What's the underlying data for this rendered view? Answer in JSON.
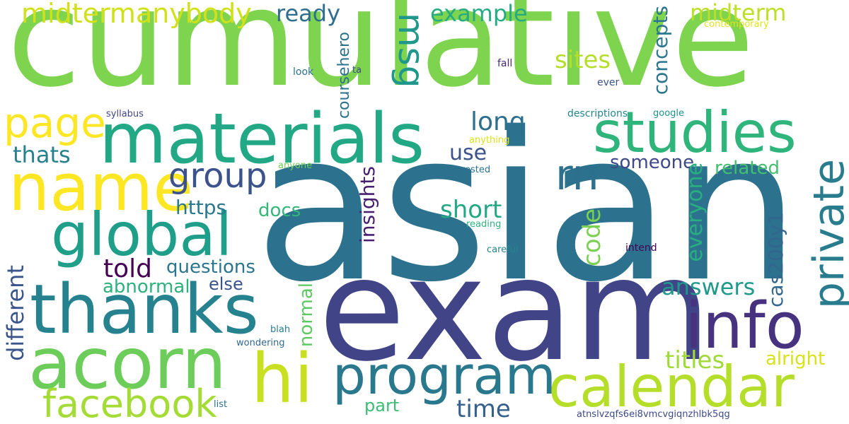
{
  "words": {
    "cumulative": {
      "text": "cumulative",
      "color": "#7ed34f"
    },
    "asian": {
      "text": "asian",
      "color": "#2c728e"
    },
    "exam": {
      "text": "exam",
      "color": "#414487"
    },
    "materials": {
      "text": "materials",
      "color": "#22a884"
    },
    "studies": {
      "text": "studies",
      "color": "#2fb47c"
    },
    "name": {
      "text": "name",
      "color": "#fde725"
    },
    "global": {
      "text": "global",
      "color": "#1f9e89"
    },
    "thanks": {
      "text": "thanks",
      "color": "#26828e"
    },
    "acorn": {
      "text": "acorn",
      "color": "#6ccd5a"
    },
    "hi": {
      "text": "hi",
      "color": "#c8e020"
    },
    "program": {
      "text": "program",
      "color": "#2a788e"
    },
    "calendar": {
      "text": "calendar",
      "color": "#b5de2b"
    },
    "info": {
      "text": "info",
      "color": "#46327e"
    },
    "facebook": {
      "text": "facebook",
      "color": "#a5db36"
    },
    "page": {
      "text": "page",
      "color": "#fde725"
    },
    "group": {
      "text": "group",
      "color": "#3b528b"
    },
    "rn": {
      "text": "rn",
      "color": "#2d708e"
    },
    "private": {
      "text": "private",
      "color": "#287c8e"
    },
    "midtermanybody": {
      "text": "midtermanybody",
      "color": "#d0e11c"
    },
    "ready": {
      "text": "ready",
      "color": "#2e6e8e"
    },
    "msg": {
      "text": "msg",
      "color": "#1f988b"
    },
    "example": {
      "text": "example",
      "color": "#25ac82"
    },
    "midterm": {
      "text": "midterm",
      "color": "#bddf26"
    },
    "sites": {
      "text": "sites",
      "color": "#b5de2b"
    },
    "concepts": {
      "text": "concepts",
      "color": "#2a768e"
    },
    "coursehero": {
      "text": "coursehero",
      "color": "#2c718e"
    },
    "long": {
      "text": "long",
      "color": "#2d708e"
    },
    "use": {
      "text": "use",
      "color": "#3b528b"
    },
    "thats": {
      "text": "thats",
      "color": "#27808e"
    },
    "someone": {
      "text": "someone",
      "color": "#3e4989"
    },
    "related": {
      "text": "related",
      "color": "#44bf70"
    },
    "everyone": {
      "text": "everyone",
      "color": "#29af7f"
    },
    "https": {
      "text": "https",
      "color": "#2a788e"
    },
    "docs": {
      "text": "docs",
      "color": "#35b779"
    },
    "insights": {
      "text": "insights",
      "color": "#481f70"
    },
    "short": {
      "text": "short",
      "color": "#22a884"
    },
    "code": {
      "text": "code",
      "color": "#7ad151"
    },
    "told": {
      "text": "told",
      "color": "#440154"
    },
    "questions": {
      "text": "questions",
      "color": "#2a768e"
    },
    "abnormal": {
      "text": "abnormal",
      "color": "#2db27d"
    },
    "else": {
      "text": "else",
      "color": "#3b528b"
    },
    "different": {
      "text": "different",
      "color": "#3a548c"
    },
    "answers": {
      "text": "answers",
      "color": "#1f9a8a"
    },
    "cas200y1": {
      "text": "cas200y1",
      "color": "#31668e"
    },
    "normal": {
      "text": "normal",
      "color": "#5ec962"
    },
    "titles": {
      "text": "titles",
      "color": "#a0da39"
    },
    "alright": {
      "text": "alright",
      "color": "#d8e219"
    },
    "time": {
      "text": "time",
      "color": "#355f8d"
    },
    "part": {
      "text": "part",
      "color": "#3dbc74"
    },
    "contemporary": {
      "text": "contemporary",
      "color": "#e2e418"
    },
    "ta": {
      "text": "ta",
      "color": "#414487"
    },
    "fall": {
      "text": "fall",
      "color": "#482878"
    },
    "look": {
      "text": "look",
      "color": "#2c728e"
    },
    "ever": {
      "text": "ever",
      "color": "#3b528b"
    },
    "syllabus": {
      "text": "syllabus",
      "color": "#404688"
    },
    "descriptions": {
      "text": "descriptions",
      "color": "#25858e"
    },
    "google": {
      "text": "google",
      "color": "#20928c"
    },
    "anything": {
      "text": "anything",
      "color": "#dde318"
    },
    "anyone": {
      "text": "anyone",
      "color": "#73d056"
    },
    "interested": {
      "text": "interested",
      "color": "#2d708e"
    },
    "reading": {
      "text": "reading",
      "color": "#2fb47c"
    },
    "careful": {
      "text": "careful",
      "color": "#26828e"
    },
    "intend": {
      "text": "intend",
      "color": "#440154"
    },
    "blah": {
      "text": "blah",
      "color": "#287d8e"
    },
    "wondering": {
      "text": "wondering",
      "color": "#31688e"
    },
    "list": {
      "text": "list",
      "color": "#2c728e"
    },
    "atnslvzqfs": {
      "text": "atnslvzqfs6ei8vmcvgiqnzhlbk5qg",
      "color": "#3e4a89"
    }
  }
}
